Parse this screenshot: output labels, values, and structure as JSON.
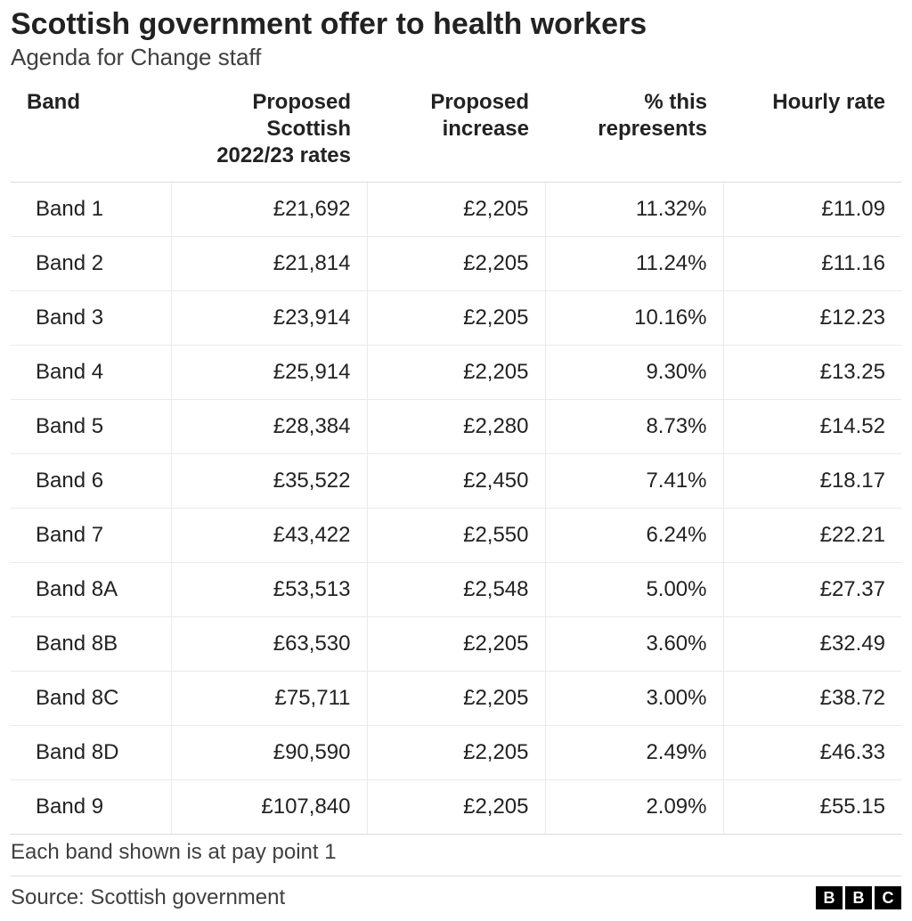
{
  "title": "Scottish government offer to health workers",
  "subtitle": "Agenda for Change staff",
  "footnote": "Each band shown is at pay point 1",
  "source": "Source: Scottish government",
  "logo": [
    "B",
    "B",
    "C"
  ],
  "table": {
    "type": "table",
    "columns": [
      {
        "label": "Band",
        "align": "left"
      },
      {
        "label": "Proposed Scottish 2022/23 rates",
        "align": "right"
      },
      {
        "label": "Proposed increase",
        "align": "right"
      },
      {
        "label": "% this represents",
        "align": "right"
      },
      {
        "label": "Hourly rate",
        "align": "right"
      }
    ],
    "rows": [
      [
        "Band 1",
        "£21,692",
        "£2,205",
        "11.32%",
        "£11.09"
      ],
      [
        "Band 2",
        "£21,814",
        "£2,205",
        "11.24%",
        "£11.16"
      ],
      [
        "Band 3",
        "£23,914",
        "£2,205",
        "10.16%",
        "£12.23"
      ],
      [
        "Band 4",
        "£25,914",
        "£2,205",
        "9.30%",
        "£13.25"
      ],
      [
        "Band 5",
        "£28,384",
        "£2,280",
        "8.73%",
        "£14.52"
      ],
      [
        "Band 6",
        "£35,522",
        "£2,450",
        "7.41%",
        "£18.17"
      ],
      [
        "Band 7",
        "£43,422",
        "£2,550",
        "6.24%",
        "£22.21"
      ],
      [
        "Band 8A",
        "£53,513",
        "£2,548",
        "5.00%",
        "£27.37"
      ],
      [
        "Band 8B",
        "£63,530",
        "£2,205",
        "3.60%",
        "£32.49"
      ],
      [
        "Band 8C",
        "£75,711",
        "£2,205",
        "3.00%",
        "£38.72"
      ],
      [
        "Band 8D",
        "£90,590",
        "£2,205",
        "2.49%",
        "£46.33"
      ],
      [
        "Band 9",
        "£107,840",
        "£2,205",
        "2.09%",
        "£55.15"
      ]
    ],
    "header_fontsize": 24,
    "cell_fontsize": 24,
    "border_color": "#eaeaea",
    "header_border_color": "#dcdcdc",
    "background_color": "#ffffff",
    "text_color": "#222222"
  }
}
